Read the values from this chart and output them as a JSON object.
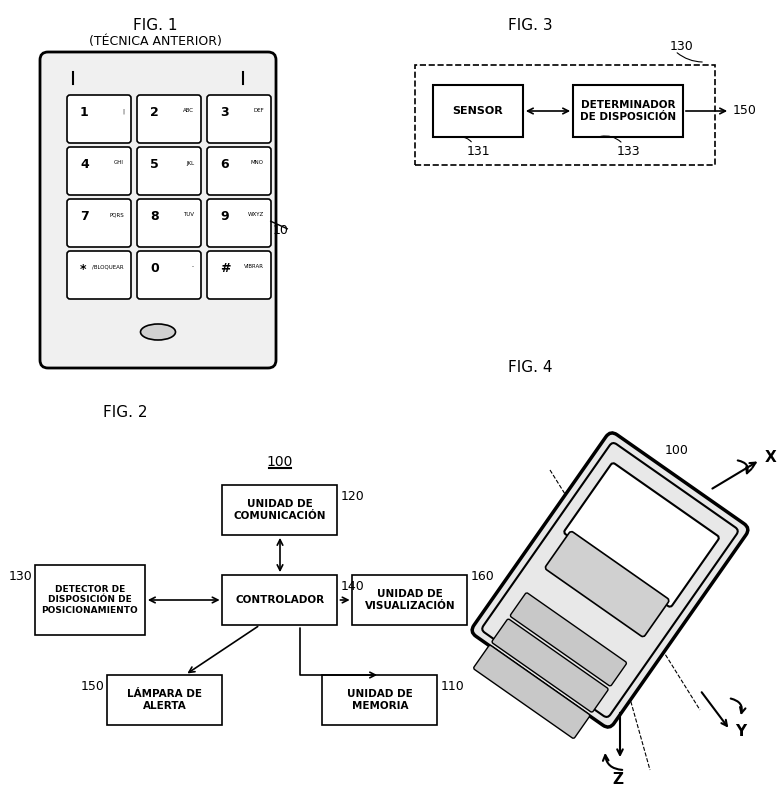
{
  "bg_color": "#ffffff",
  "fig1_title": "FIG. 1",
  "fig1_subtitle": "(TÉCNICA ANTERIOR)",
  "fig2_title": "FIG. 2",
  "fig3_title": "FIG. 3",
  "fig4_title": "FIG. 4",
  "label_10": "10",
  "label_100_fig2": "100",
  "label_100_fig4": "100",
  "label_110": "110",
  "label_120": "120",
  "label_130_fig3": "130",
  "label_130_fig2": "130",
  "label_131": "131",
  "label_133": "133",
  "label_140": "140",
  "label_150_fig3": "150",
  "label_150_fig2": "150",
  "label_160": "160",
  "box_sensor": "SENSOR",
  "box_det_disp": "DETERMINADOR\nDE DISPOSICIÓN",
  "box_comm": "UNIDAD DE\nCOMUNICACIÓN",
  "box_ctrl": "CONTROLADOR",
  "box_viz": "UNIDAD DE\nVISUALIZACIÓN",
  "box_lamp": "LÁMPARA DE\nALERTA",
  "box_mem": "UNIDAD DE\nMEMORIA",
  "box_detector": "DETECTOR DE\nDISPOSICIÓN DE\nPOSICIONAMIENTO",
  "axis_x": "X",
  "axis_y": "Y",
  "axis_z": "Z"
}
